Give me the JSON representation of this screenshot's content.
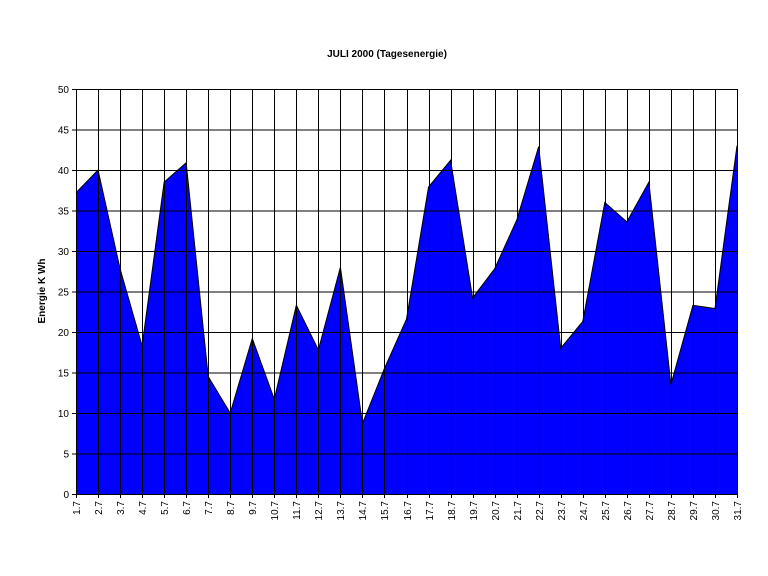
{
  "chart_data": {
    "type": "area",
    "title": "JULI 2000 (Tagesenergie)",
    "xlabel": "",
    "ylabel": "Energie K Wh",
    "ylim": [
      0,
      50
    ],
    "y_ticks": [
      "0",
      "5",
      "10",
      "15",
      "20",
      "25",
      "30",
      "35",
      "40",
      "45",
      "50"
    ],
    "grid": true,
    "legend": "none",
    "categories": [
      "1.7",
      "2.7",
      "3.7",
      "4.7",
      "5.7",
      "6.7",
      "7.7",
      "8.7",
      "9.7",
      "10.7",
      "11.7",
      "12.7",
      "13.7",
      "14.7",
      "15.7",
      "16.7",
      "17.7",
      "18.7",
      "19.7",
      "20.7",
      "21.7",
      "22.7",
      "23.7",
      "24.7",
      "25.7",
      "26.7",
      "27.7",
      "28.7",
      "29.7",
      "30.7",
      "31.7"
    ],
    "series": [
      {
        "values": [
          37.2,
          40.0,
          27.8,
          18.3,
          38.5,
          40.9,
          14.5,
          10.0,
          19.2,
          11.7,
          23.3,
          17.8,
          28.0,
          8.7,
          15.5,
          21.6,
          37.9,
          41.2,
          24.2,
          27.8,
          33.8,
          42.9,
          18.0,
          21.3,
          36.0,
          33.6,
          38.5,
          13.5,
          23.3,
          22.9,
          43.0
        ]
      }
    ],
    "colors": {
      "fill": "#0000ff",
      "line": "#000000",
      "grid": "#000000",
      "background": "#ffffff"
    }
  }
}
